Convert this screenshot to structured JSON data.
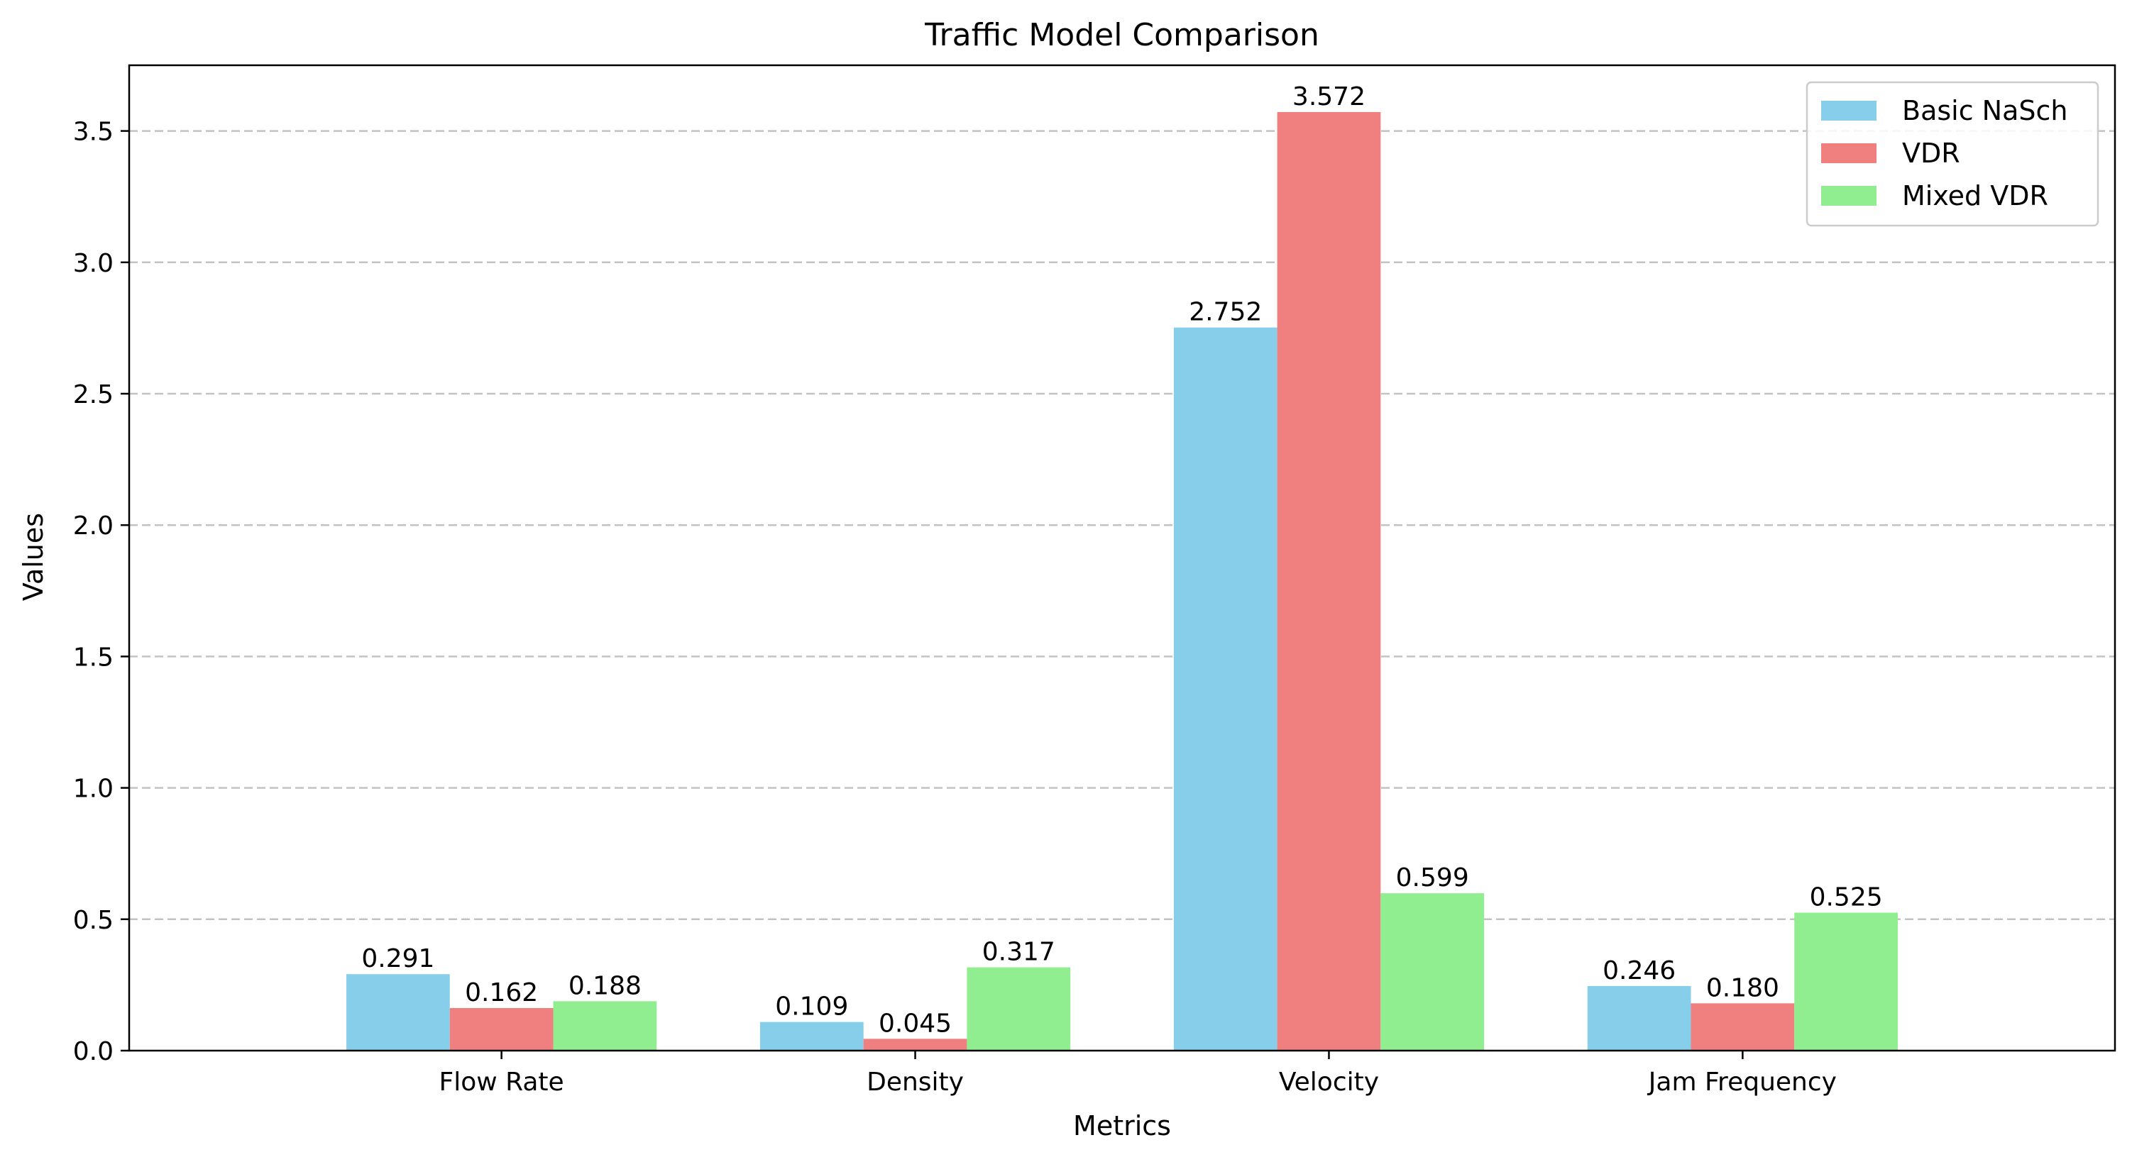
{
  "chart_data": {
    "type": "bar",
    "title": "Traffic Model Comparison",
    "xlabel": "Metrics",
    "ylabel": "Values",
    "categories": [
      "Flow Rate",
      "Density",
      "Velocity",
      "Jam Frequency"
    ],
    "series": [
      {
        "name": "Basic NaSch",
        "color": "#87ceeb",
        "values": [
          0.291,
          0.109,
          2.752,
          0.246
        ],
        "labels": [
          "0.291",
          "0.109",
          "2.752",
          "0.246"
        ]
      },
      {
        "name": "VDR",
        "color": "#f08080",
        "values": [
          0.162,
          0.045,
          3.572,
          0.18
        ],
        "labels": [
          "0.162",
          "0.045",
          "3.572",
          "0.180"
        ]
      },
      {
        "name": "Mixed VDR",
        "color": "#90ee90",
        "values": [
          0.188,
          0.317,
          0.599,
          0.525
        ],
        "labels": [
          "0.188",
          "0.317",
          "0.599",
          "0.525"
        ]
      }
    ],
    "ylim": [
      0,
      3.75
    ],
    "yticks": [
      0.0,
      0.5,
      1.0,
      1.5,
      2.0,
      2.5,
      3.0,
      3.5
    ],
    "ytick_labels": [
      "0.0",
      "0.5",
      "1.0",
      "1.5",
      "2.0",
      "2.5",
      "3.0",
      "3.5"
    ],
    "grid": "y-dashed",
    "legend_position": "top-right"
  }
}
